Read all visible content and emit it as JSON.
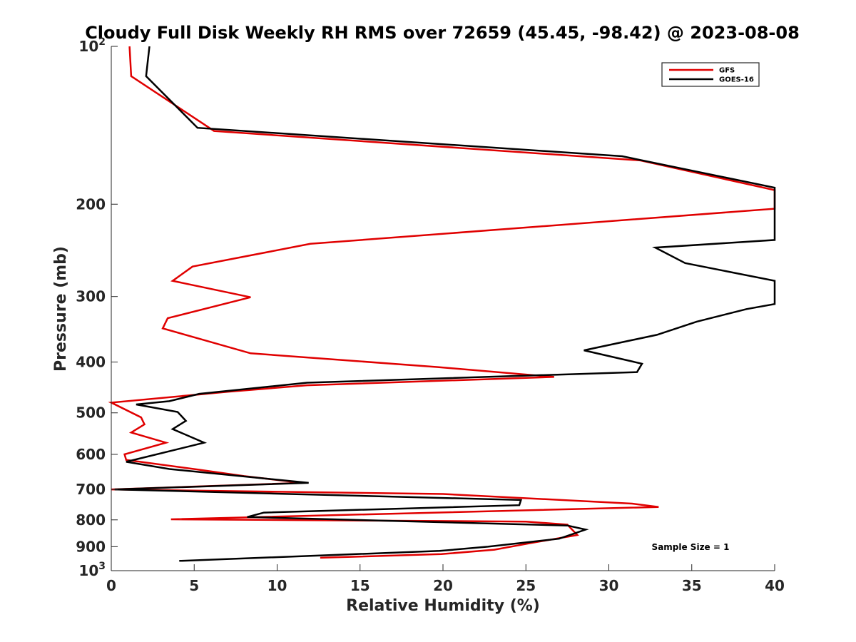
{
  "chart_data": {
    "type": "line",
    "title": "Cloudy Full Disk Weekly RH RMS over 72659 (45.45, -98.42) @ 2023-08-08",
    "xlabel": "Relative Humidity (%)",
    "ylabel": "Pressure (mb)",
    "xlim": [
      0,
      40
    ],
    "ylim": [
      100,
      1000
    ],
    "y_scale": "log",
    "y_reversed": true,
    "grid": false,
    "legend_position": "top-right",
    "annotation": "Sample Size = 1",
    "x_ticks": [
      {
        "value": 0,
        "label": "0"
      },
      {
        "value": 5,
        "label": "5"
      },
      {
        "value": 10,
        "label": "10"
      },
      {
        "value": 15,
        "label": "15"
      },
      {
        "value": 20,
        "label": "20"
      },
      {
        "value": 25,
        "label": "25"
      },
      {
        "value": 30,
        "label": "30"
      },
      {
        "value": 35,
        "label": "35"
      },
      {
        "value": 40,
        "label": "40"
      }
    ],
    "y_ticks": [
      {
        "value": 100,
        "base": "10",
        "sup": "2"
      },
      {
        "value": 200,
        "base": "200",
        "sup": ""
      },
      {
        "value": 300,
        "base": "300",
        "sup": ""
      },
      {
        "value": 400,
        "base": "400",
        "sup": ""
      },
      {
        "value": 500,
        "base": "500",
        "sup": ""
      },
      {
        "value": 600,
        "base": "600",
        "sup": ""
      },
      {
        "value": 700,
        "base": "700",
        "sup": ""
      },
      {
        "value": 800,
        "base": "800",
        "sup": ""
      },
      {
        "value": 900,
        "base": "900",
        "sup": ""
      },
      {
        "value": 1000,
        "base": "10",
        "sup": "3"
      }
    ],
    "series": [
      {
        "name": "GFS",
        "color": "#e00000",
        "points": [
          [
            1.1,
            100
          ],
          [
            1.2,
            114
          ],
          [
            6.2,
            145
          ],
          [
            31.9,
            165
          ],
          [
            40,
            188
          ],
          [
            40,
            204
          ],
          [
            12,
            238
          ],
          [
            4.9,
            263
          ],
          [
            3.7,
            280
          ],
          [
            8.4,
            301
          ],
          [
            3.4,
            330
          ],
          [
            3.1,
            345
          ],
          [
            5.3,
            361
          ],
          [
            8.4,
            385
          ],
          [
            19.7,
            409
          ],
          [
            26.7,
            427
          ],
          [
            11.8,
            443
          ],
          [
            7.0,
            456
          ],
          [
            0,
            478
          ],
          [
            1.8,
            510
          ],
          [
            2.0,
            526
          ],
          [
            1.2,
            545
          ],
          [
            3.3,
            570
          ],
          [
            0.8,
            600
          ],
          [
            0.9,
            615
          ],
          [
            5.3,
            642
          ],
          [
            8.0,
            660
          ],
          [
            11.5,
            680
          ],
          [
            0,
            700
          ],
          [
            20,
            714
          ],
          [
            31.4,
            745
          ],
          [
            33,
            756
          ],
          [
            3.6,
            798
          ],
          [
            25,
            806
          ],
          [
            27.5,
            817
          ],
          [
            28.1,
            855
          ],
          [
            25.2,
            887
          ],
          [
            23.1,
            912
          ],
          [
            19.9,
            930
          ],
          [
            12.6,
            945
          ]
        ]
      },
      {
        "name": "GOES-16",
        "color": "#000000",
        "points": [
          [
            2.3,
            100
          ],
          [
            2.1,
            114
          ],
          [
            5.2,
            143
          ],
          [
            30.8,
            162
          ],
          [
            40,
            186
          ],
          [
            40,
            234
          ],
          [
            32.8,
            242
          ],
          [
            34.6,
            259
          ],
          [
            40,
            280
          ],
          [
            40,
            310
          ],
          [
            38.3,
            317
          ],
          [
            35.3,
            335
          ],
          [
            32.9,
            355
          ],
          [
            28.5,
            380
          ],
          [
            32.0,
            403
          ],
          [
            31.7,
            418
          ],
          [
            11.8,
            438
          ],
          [
            5.3,
            460
          ],
          [
            3.5,
            475
          ],
          [
            1.5,
            482
          ],
          [
            4.0,
            498
          ],
          [
            4.5,
            518
          ],
          [
            3.7,
            537
          ],
          [
            5.6,
            570
          ],
          [
            0.9,
            620
          ],
          [
            3.5,
            640
          ],
          [
            11.9,
            680
          ],
          [
            0.2,
            700
          ],
          [
            24.7,
            733
          ],
          [
            24.6,
            750
          ],
          [
            9.2,
            775
          ],
          [
            8.2,
            790
          ],
          [
            27.5,
            820
          ],
          [
            28.6,
            835
          ],
          [
            27.0,
            869
          ],
          [
            22.7,
            900
          ],
          [
            19.8,
            917
          ],
          [
            4.1,
            958
          ]
        ]
      }
    ]
  }
}
